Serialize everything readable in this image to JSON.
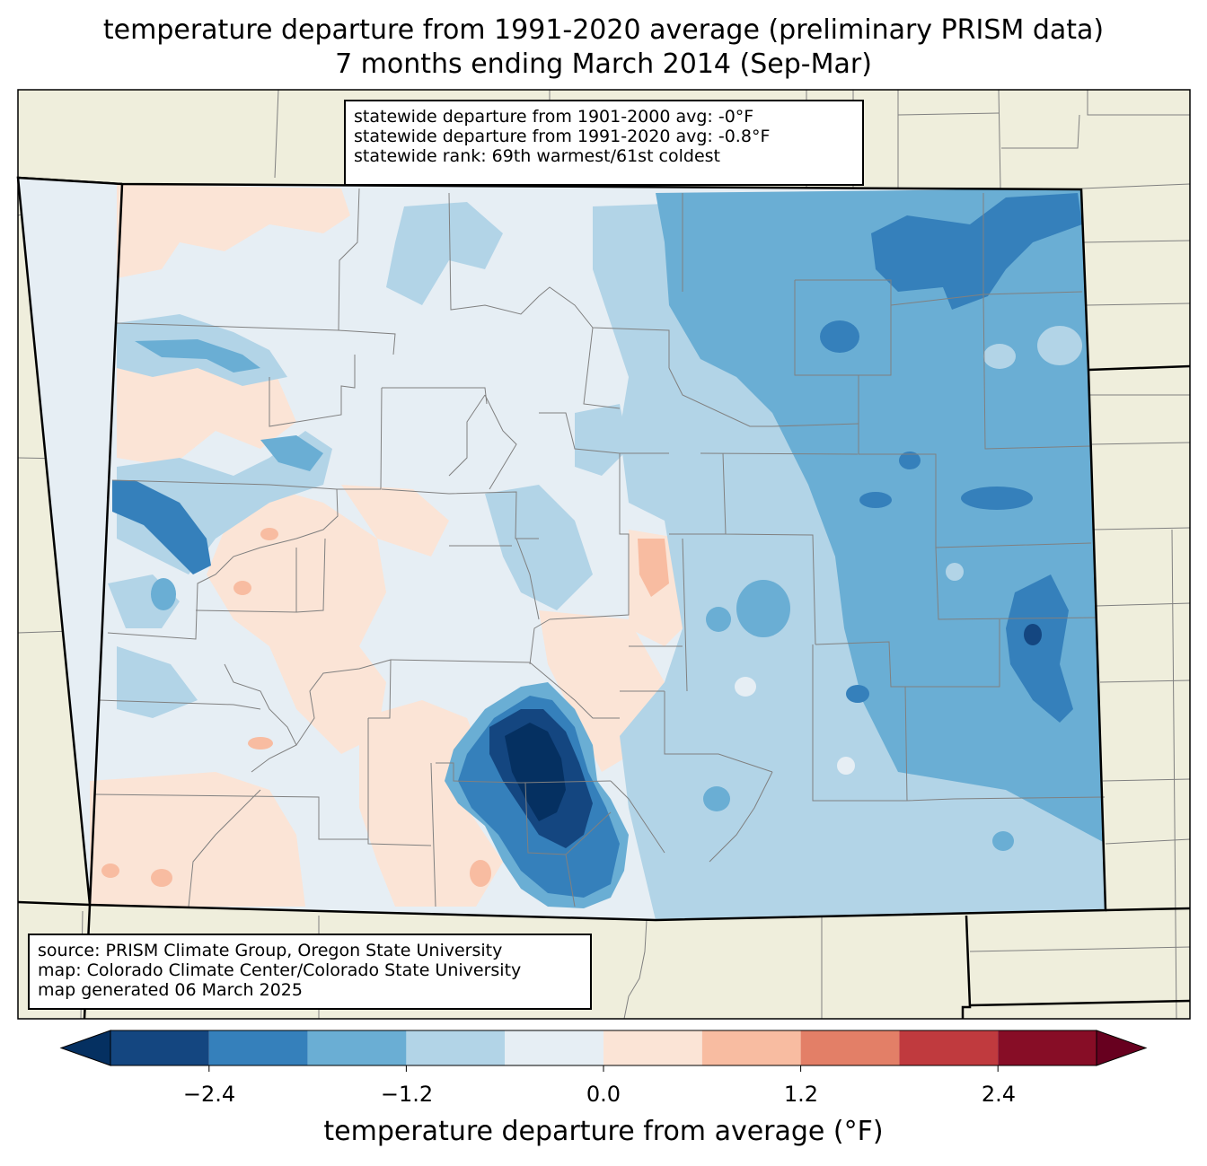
{
  "title": {
    "line1": "temperature departure from 1991-2020 average (preliminary PRISM data)",
    "line2": "7 months ending March 2014 (Sep-Mar)"
  },
  "stats": {
    "line1": "statewide departure from 1901-2000 avg: -0°F",
    "line2": "statewide departure from 1991-2020 avg: -0.8°F",
    "line3": "statewide rank: 69th warmest/61st coldest"
  },
  "source": {
    "line1": "source: PRISM Climate Group, Oregon State University",
    "line2": "map: Colorado Climate Center/Colorado State University",
    "line3": "map generated 06 March 2025"
  },
  "colorbar": {
    "label": "temperature departure from average (°F)",
    "ticks": [
      "−2.4",
      "−1.2",
      "0.0",
      "1.2",
      "2.4"
    ],
    "bins": [
      {
        "from": -3.0,
        "to": -2.4,
        "color": "#144680"
      },
      {
        "from": -2.4,
        "to": -1.8,
        "color": "#3580bb"
      },
      {
        "from": -1.8,
        "to": -1.2,
        "color": "#6aaed4"
      },
      {
        "from": -1.2,
        "to": -0.6,
        "color": "#b2d4e7"
      },
      {
        "from": -0.6,
        "to": 0.0,
        "color": "#e6eef4"
      },
      {
        "from": 0.0,
        "to": 0.6,
        "color": "#fbe4d6"
      },
      {
        "from": 0.6,
        "to": 1.2,
        "color": "#f8bca1"
      },
      {
        "from": 1.2,
        "to": 1.8,
        "color": "#e37f67"
      },
      {
        "from": 1.8,
        "to": 2.4,
        "color": "#c03a3e"
      },
      {
        "from": 2.4,
        "to": 3.0,
        "color": "#870d26"
      }
    ],
    "under_color": "#053061",
    "over_color": "#67001f"
  },
  "colors": {
    "land": "#efeedc",
    "boundary": "#808080"
  }
}
